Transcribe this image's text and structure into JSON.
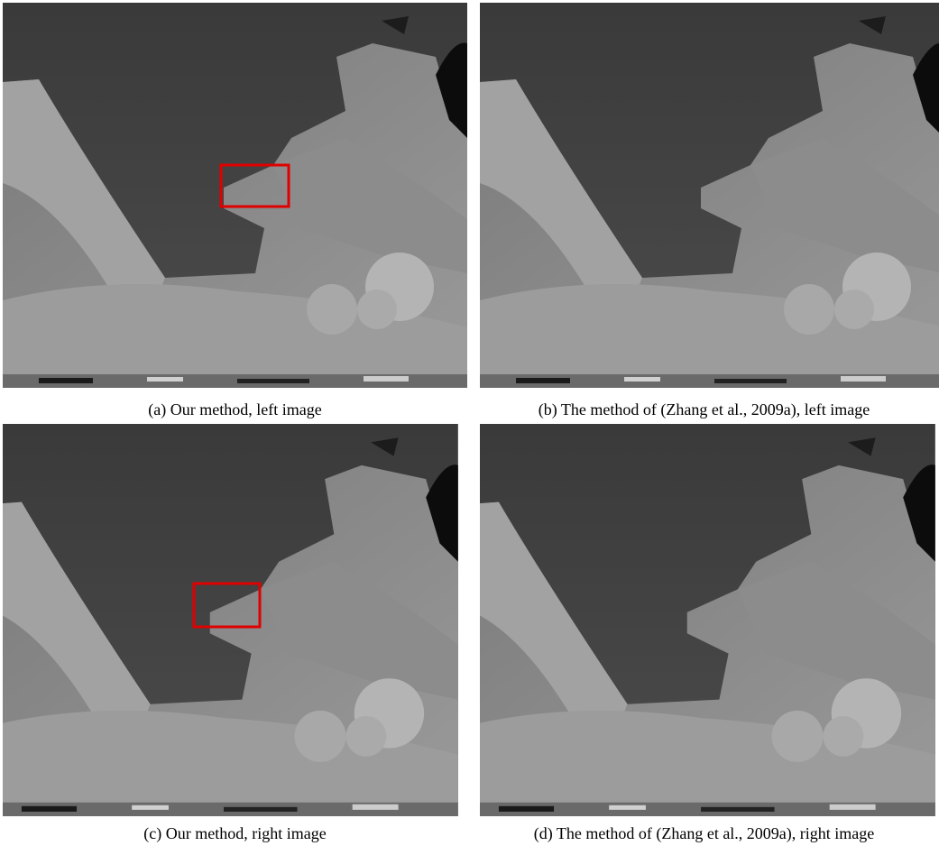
{
  "figure": {
    "panels": [
      {
        "caption": "(a) Our method, left image"
      },
      {
        "caption": "(b) The method of (Zhang et al., 2009a), left image"
      },
      {
        "caption": "(c) Our method, right image"
      },
      {
        "caption": "(d) The method of (Zhang et al., 2009a), right image"
      }
    ]
  }
}
